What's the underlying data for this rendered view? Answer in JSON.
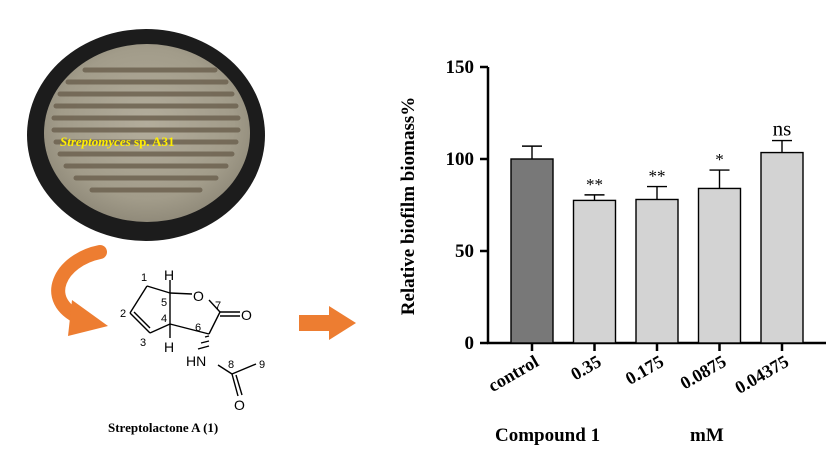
{
  "petri": {
    "label_species": "Streptomyces",
    "label_strain": " sp. A31",
    "colors": {
      "rim": "#1c1c1c",
      "agar": "#a8a291",
      "streak": "#6d6250",
      "label": "#ffee00"
    }
  },
  "structure": {
    "caption": "Streptolactone A (1)",
    "atoms": {
      "h_top": "H",
      "h_bottom": "H",
      "o_ring": "O",
      "o_carbonyl": "O",
      "nh": "HN",
      "o_amide": "O"
    },
    "numbers": [
      "1",
      "2",
      "3",
      "4",
      "5",
      "6",
      "7",
      "8",
      "9"
    ]
  },
  "arrows": {
    "color": "#ed7d31"
  },
  "chart_data": {
    "type": "bar",
    "ylabel": "Relative biofilm biomass%",
    "ylim": [
      0,
      150
    ],
    "yticks": [
      0,
      50,
      100,
      150
    ],
    "categories": [
      "control",
      "0.35",
      "0.175",
      "0.0875",
      "0.04375"
    ],
    "values": [
      100,
      77.5,
      78,
      84,
      103.5
    ],
    "errors": [
      7,
      3,
      7,
      10,
      6.5
    ],
    "significance": [
      "",
      "**",
      "**",
      "*",
      "ns"
    ],
    "bar_colors": [
      "#787878",
      "#d3d3d3",
      "#d3d3d3",
      "#d3d3d3",
      "#d3d3d3"
    ],
    "group_labels": {
      "compound": "Compound 1",
      "unit": "mM"
    }
  }
}
